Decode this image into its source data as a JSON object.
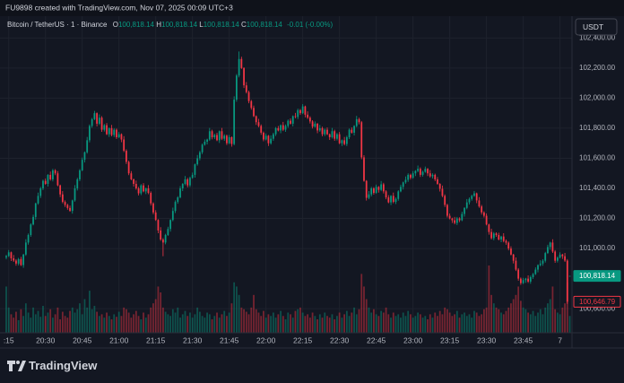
{
  "header": {
    "text": "FU9898 created with TradingView.com, Nov 07, 2025 00:09 UTC+3"
  },
  "chart_data": {
    "type": "candlestick",
    "legend": {
      "symbol": "Bitcoin / TetherUS · 1 · Binance",
      "open_label": "O",
      "open": "100,818.14",
      "high_label": "H",
      "high": "100,818.14",
      "low_label": "L",
      "low": "100,818.14",
      "close_label": "C",
      "close": "100,818.14",
      "change": "-0.01 (-0.00%)"
    },
    "currency": "USDT",
    "up_color": "#089981",
    "down_color": "#f23645",
    "grid": true,
    "xlim": [
      -2.56,
      230.9
    ],
    "xticks": [
      {
        "value": 1,
        "label": ":15"
      },
      {
        "value": 16,
        "label": "20:30"
      },
      {
        "value": 31,
        "label": "20:45"
      },
      {
        "value": 46,
        "label": "21:00"
      },
      {
        "value": 61,
        "label": "21:15"
      },
      {
        "value": 76,
        "label": "21:30"
      },
      {
        "value": 91,
        "label": "21:45"
      },
      {
        "value": 106,
        "label": "22:00"
      },
      {
        "value": 121,
        "label": "22:15"
      },
      {
        "value": 136,
        "label": "22:30"
      },
      {
        "value": 151,
        "label": "22:45"
      },
      {
        "value": 166,
        "label": "23:00"
      },
      {
        "value": 181,
        "label": "23:15"
      },
      {
        "value": 196,
        "label": "23:30"
      },
      {
        "value": 211,
        "label": "23:45"
      },
      {
        "value": 226,
        "label": "7"
      }
    ],
    "ylim": [
      100440,
      102545
    ],
    "yticks": [
      {
        "value": 102400,
        "label": "102,400.00"
      },
      {
        "value": 102200,
        "label": "102,200.00"
      },
      {
        "value": 102000,
        "label": "102,000.00"
      },
      {
        "value": 101800,
        "label": "101,800.00"
      },
      {
        "value": 101600,
        "label": "101,600.00"
      },
      {
        "value": 101400,
        "label": "101,400.00"
      },
      {
        "value": 101200,
        "label": "101,200.00"
      },
      {
        "value": 101000,
        "label": "101,000.00"
      },
      {
        "value": 100600,
        "label": "100,600.00"
      }
    ],
    "open": [
      100940,
      100950,
      100975,
      100935,
      100920,
      100900,
      100930,
      100890,
      100960,
      101040,
      101090,
      101160,
      101210,
      101300,
      101350,
      101400,
      101450,
      101430,
      101490,
      101460,
      101520,
      101500,
      101420,
      101360,
      101310,
      101290,
      101270,
      101250,
      101320,
      101400,
      101460,
      101520,
      101590,
      101640,
      101720,
      101815,
      101860,
      101900,
      101830,
      101870,
      101790,
      101820,
      101760,
      101800,
      101755,
      101790,
      101740,
      101760,
      101725,
      101650,
      101576,
      101500,
      101460,
      101430,
      101400,
      101367,
      101420,
      101380,
      101400,
      101370,
      101300,
      101240,
      101190,
      101120,
      101060,
      101040,
      101090,
      101130,
      101190,
      101250,
      101310,
      101340,
      101400,
      101430,
      101460,
      101420,
      101470,
      101490,
      101560,
      101600,
      101640,
      101690,
      101710,
      101725,
      101780,
      101740,
      101755,
      101720,
      101780,
      101730,
      101750,
      101700,
      101740,
      101695,
      101990,
      102150,
      102260,
      102200,
      102085,
      102040,
      101980,
      101935,
      101880,
      101840,
      101815,
      101770,
      101725,
      101750,
      101700,
      101730,
      101760,
      101800,
      101785,
      101820,
      101790,
      101815,
      101850,
      101830,
      101880,
      101875,
      101920,
      101900,
      101945,
      101890,
      101870,
      101845,
      101810,
      101830,
      101785,
      101800,
      101760,
      101790,
      101760,
      101740,
      101780,
      101730,
      101760,
      101700,
      101720,
      101695,
      101740,
      101790,
      101770,
      101815,
      101860,
      101840,
      101606,
      101450,
      101337,
      101360,
      101400,
      101370,
      101410,
      101390,
      101427,
      101380,
      101340,
      101307,
      101350,
      101310,
      101330,
      101380,
      101410,
      101440,
      101457,
      101490,
      101470,
      101500,
      101516,
      101530,
      101490,
      101510,
      101530,
      101500,
      101480,
      101490,
      101460,
      101430,
      101397,
      101350,
      101290,
      101218,
      101200,
      101188,
      101170,
      101200,
      101188,
      101230,
      101270,
      101307,
      101330,
      101350,
      101367,
      101320,
      101280,
      101240,
      101218,
      101160,
      101110,
      101069,
      101100,
      101090,
      101060,
      101080,
      101050,
      101039,
      101000,
      100960,
      100919,
      100860,
      100800,
      100770,
      100790,
      100800,
      100780,
      100810,
      100830,
      100860,
      100890,
      100900,
      100919,
      100970,
      101010,
      101040,
      100980,
      100919,
      100940,
      100960,
      100949,
      100920,
      100818.14
    ],
    "high": [
      100958,
      100990,
      100980,
      100957,
      100930,
      100938,
      100945,
      100965,
      101062,
      101100,
      101168,
      101225,
      101305,
      101372,
      101410,
      101458,
      101465,
      101495,
      101512,
      101530,
      101528,
      101515,
      101425,
      101382,
      101320,
      101298,
      101285,
      101325,
      101422,
      101470,
      101528,
      101605,
      101645,
      101742,
      101825,
      101868,
      101915,
      101905,
      101892,
      101880,
      101828,
      101835,
      101805,
      101822,
      101800,
      101798,
      101775,
      101765,
      101747,
      101660,
      101584,
      101515,
      101465,
      101452,
      101410,
      101428,
      101435,
      101405,
      101422,
      101380,
      101308,
      101255,
      101195,
      101142,
      101070,
      101098,
      101145,
      101195,
      101272,
      101320,
      101348,
      101415,
      101435,
      101482,
      101470,
      101478,
      101505,
      101565,
      101622,
      101650,
      101698,
      101725,
      101730,
      101802,
      101790,
      101763,
      101770,
      101785,
      101802,
      101760,
      101758,
      101755,
      101745,
      102012,
      102160,
      102310,
      102275,
      102205,
      102107,
      102050,
      101988,
      101950,
      101885,
      101862,
      101825,
      101778,
      101765,
      101755,
      101752,
      101770,
      101808,
      101815,
      101825,
      101842,
      101825,
      101858,
      101865,
      101885,
      101902,
      101930,
      101928,
      101960,
      101950,
      101912,
      101880,
      101853,
      101845,
      101835,
      101822,
      101810,
      101798,
      101805,
      101765,
      101802,
      101790,
      101768,
      101775,
      101725,
      101742,
      101750,
      101798,
      101805,
      101820,
      101882,
      101870,
      101848,
      101621,
      101455,
      101382,
      101410,
      101408,
      101425,
      101415,
      101449,
      101437,
      101388,
      101355,
      101355,
      101372,
      101340,
      101388,
      101425,
      101445,
      101479,
      101500,
      101498,
      101515,
      101521,
      101552,
      101540,
      101518,
      101545,
      101535,
      101522,
      101500,
      101498,
      101475,
      101435,
      101419,
      101360,
      101298,
      101233,
      101205,
      101210,
      101210,
      101208,
      101245,
      101275,
      101329,
      101340,
      101358,
      101382,
      101372,
      101342,
      101290,
      101248,
      101233,
      101165,
      101132,
      101110,
      101108,
      101105,
      101085,
      101102,
      101060,
      101047,
      101015,
      100965,
      100941,
      100870,
      100808,
      100805,
      100805,
      100822,
      100820,
      100838,
      100875,
      100895,
      100922,
      100929,
      100978,
      101025,
      101045,
      101062,
      100990,
      100948,
      100975,
      100965,
      100971,
      100930,
      100818.14
    ],
    "low": [
      100928,
      100944,
      100917,
      100911,
      100886,
      100888,
      100884,
      100872,
      100951,
      101026,
      101078,
      101154,
      101192,
      101291,
      101336,
      101388,
      101424,
      101412,
      101451,
      101446,
      101488,
      101414,
      101342,
      101301,
      101276,
      101258,
      101244,
      101232,
      101311,
      101386,
      101448,
      101514,
      101572,
      101631,
      101706,
      101803,
      101854,
      101812,
      101821,
      101776,
      101778,
      101754,
      101742,
      101746,
      101741,
      101728,
      101734,
      101707,
      101641,
      101562,
      101488,
      101454,
      101412,
      101391,
      101353,
      101355,
      101374,
      101362,
      101361,
      101286,
      101228,
      101184,
      101102,
      101051,
      100949,
      101028,
      101084,
      101112,
      101181,
      101236,
      101298,
      101334,
      101382,
      101421,
      101406,
      101408,
      101464,
      101472,
      101551,
      101586,
      101628,
      101684,
      101692,
      101716,
      101726,
      101728,
      101714,
      101702,
      101721,
      101716,
      101688,
      101694,
      101677,
      101686,
      101976,
      102138,
      102194,
      102067,
      102031,
      101966,
      101923,
      101874,
      101822,
      101806,
      101756,
      101713,
      101719,
      101682,
      101691,
      101716,
      101748,
      101779,
      101767,
      101781,
      101776,
      101803,
      101824,
      101812,
      101866,
      101861,
      101888,
      101894,
      101872,
      101861,
      101831,
      101798,
      101804,
      101767,
      101776,
      101746,
      101748,
      101754,
      101722,
      101731,
      101716,
      101718,
      101694,
      101682,
      101686,
      101681,
      101728,
      101764,
      101752,
      101806,
      101826,
      101594,
      101444,
      101319,
      101328,
      101346,
      101358,
      101364,
      101372,
      101381,
      101366,
      101328,
      101301,
      101289,
      101301,
      101296,
      101318,
      101374,
      101392,
      101431,
      101443,
      101458,
      101464,
      101482,
      101507,
      101476,
      101478,
      101504,
      101482,
      101471,
      101466,
      101448,
      101424,
      101379,
      101341,
      101276,
      101206,
      101194,
      101170,
      101161,
      101156,
      101176,
      101182,
      101212,
      101261,
      101293,
      101318,
      101344,
      101302,
      101271,
      101226,
      101206,
      101154,
      101092,
      101060,
      101055,
      101078,
      101054,
      101042,
      101041,
      101025,
      100988,
      100954,
      100901,
      100851,
      100786,
      100758,
      100764,
      100772,
      100771,
      100766,
      100798,
      100824,
      100842,
      100881,
      100886,
      100907,
      100964,
      100992,
      100971,
      100905,
      100907,
      100934,
      100931,
      100911,
      100632,
      100818.14
    ],
    "close": [
      100950,
      100975,
      100935,
      100920,
      100900,
      100930,
      100890,
      100960,
      101040,
      101090,
      101160,
      101210,
      101300,
      101350,
      101400,
      101450,
      101430,
      101490,
      101460,
      101520,
      101500,
      101420,
      101360,
      101310,
      101290,
      101270,
      101250,
      101320,
      101400,
      101460,
      101520,
      101590,
      101640,
      101720,
      101815,
      101860,
      101900,
      101830,
      101870,
      101790,
      101820,
      101760,
      101800,
      101755,
      101790,
      101740,
      101760,
      101725,
      101650,
      101576,
      101500,
      101460,
      101430,
      101400,
      101367,
      101420,
      101380,
      101400,
      101370,
      101300,
      101240,
      101190,
      101120,
      101060,
      101040,
      101090,
      101130,
      101190,
      101250,
      101310,
      101340,
      101400,
      101430,
      101460,
      101420,
      101470,
      101490,
      101560,
      101600,
      101640,
      101690,
      101710,
      101725,
      101780,
      101740,
      101755,
      101720,
      101780,
      101730,
      101750,
      101700,
      101740,
      101695,
      101990,
      102150,
      102260,
      102200,
      102085,
      102040,
      101980,
      101935,
      101880,
      101840,
      101815,
      101770,
      101725,
      101750,
      101700,
      101730,
      101760,
      101800,
      101785,
      101820,
      101790,
      101815,
      101850,
      101830,
      101880,
      101875,
      101920,
      101900,
      101945,
      101890,
      101870,
      101845,
      101810,
      101830,
      101785,
      101800,
      101760,
      101790,
      101760,
      101740,
      101780,
      101730,
      101760,
      101700,
      101720,
      101695,
      101740,
      101790,
      101770,
      101815,
      101860,
      101840,
      101606,
      101450,
      101337,
      101360,
      101400,
      101370,
      101410,
      101390,
      101427,
      101380,
      101340,
      101307,
      101350,
      101310,
      101330,
      101380,
      101410,
      101440,
      101457,
      101490,
      101470,
      101500,
      101516,
      101530,
      101490,
      101510,
      101530,
      101500,
      101480,
      101490,
      101460,
      101430,
      101397,
      101350,
      101290,
      101218,
      101200,
      101188,
      101170,
      101200,
      101188,
      101230,
      101270,
      101307,
      101330,
      101350,
      101367,
      101320,
      101280,
      101240,
      101218,
      101160,
      101110,
      101069,
      101100,
      101090,
      101060,
      101080,
      101050,
      101039,
      101000,
      100960,
      100919,
      100860,
      100800,
      100770,
      100790,
      100800,
      100780,
      100810,
      100830,
      100860,
      100890,
      100900,
      100919,
      100970,
      101010,
      101040,
      100980,
      100919,
      100940,
      100960,
      100949,
      100920,
      100646.79,
      100818.14
    ],
    "volume": [
      55,
      30,
      22,
      18,
      25,
      15,
      28,
      20,
      35,
      24,
      18,
      30,
      22,
      26,
      19,
      32,
      20,
      24,
      28,
      18,
      22,
      30,
      16,
      25,
      20,
      18,
      26,
      30,
      24,
      28,
      35,
      22,
      40,
      30,
      50,
      28,
      32,
      25,
      20,
      22,
      18,
      24,
      20,
      16,
      22,
      19,
      25,
      20,
      30,
      28,
      24,
      18,
      22,
      26,
      20,
      16,
      24,
      18,
      22,
      30,
      35,
      40,
      55,
      48,
      30,
      25,
      22,
      20,
      28,
      24,
      30,
      18,
      22,
      26,
      20,
      24,
      18,
      22,
      30,
      25,
      20,
      18,
      24,
      22,
      16,
      20,
      24,
      18,
      22,
      26,
      20,
      24,
      35,
      60,
      55,
      45,
      30,
      28,
      25,
      22,
      30,
      45,
      28,
      24,
      20,
      26,
      18,
      22,
      20,
      24,
      18,
      22,
      26,
      20,
      16,
      24,
      22,
      18,
      26,
      28,
      30,
      24,
      20,
      22,
      18,
      24,
      20,
      16,
      22,
      18,
      24,
      20,
      18,
      22,
      16,
      20,
      24,
      18,
      22,
      26,
      20,
      24,
      30,
      22,
      28,
      70,
      55,
      40,
      30,
      24,
      28,
      22,
      20,
      26,
      24,
      30,
      22,
      18,
      24,
      20,
      22,
      18,
      24,
      20,
      26,
      22,
      18,
      20,
      24,
      22,
      18,
      20,
      16,
      22,
      18,
      24,
      20,
      26,
      22,
      30,
      28,
      24,
      20,
      22,
      26,
      18,
      22,
      24,
      20,
      22,
      18,
      26,
      24,
      20,
      22,
      28,
      30,
      80,
      45,
      35,
      30,
      28,
      24,
      22,
      26,
      30,
      35,
      40,
      45,
      55,
      38,
      30,
      28,
      24,
      22,
      26,
      20,
      24,
      28,
      22,
      30,
      35,
      40,
      55,
      28,
      24,
      22,
      30,
      35,
      60,
      20
    ],
    "price_labels": [
      {
        "value": 100818.14,
        "label": "100,818.14",
        "color": "#089981",
        "filled": true
      },
      {
        "value": 100646.79,
        "label": "100,646.79",
        "color": "#f23645",
        "filled": false
      }
    ]
  },
  "footer": {
    "brand": "TradingView"
  }
}
